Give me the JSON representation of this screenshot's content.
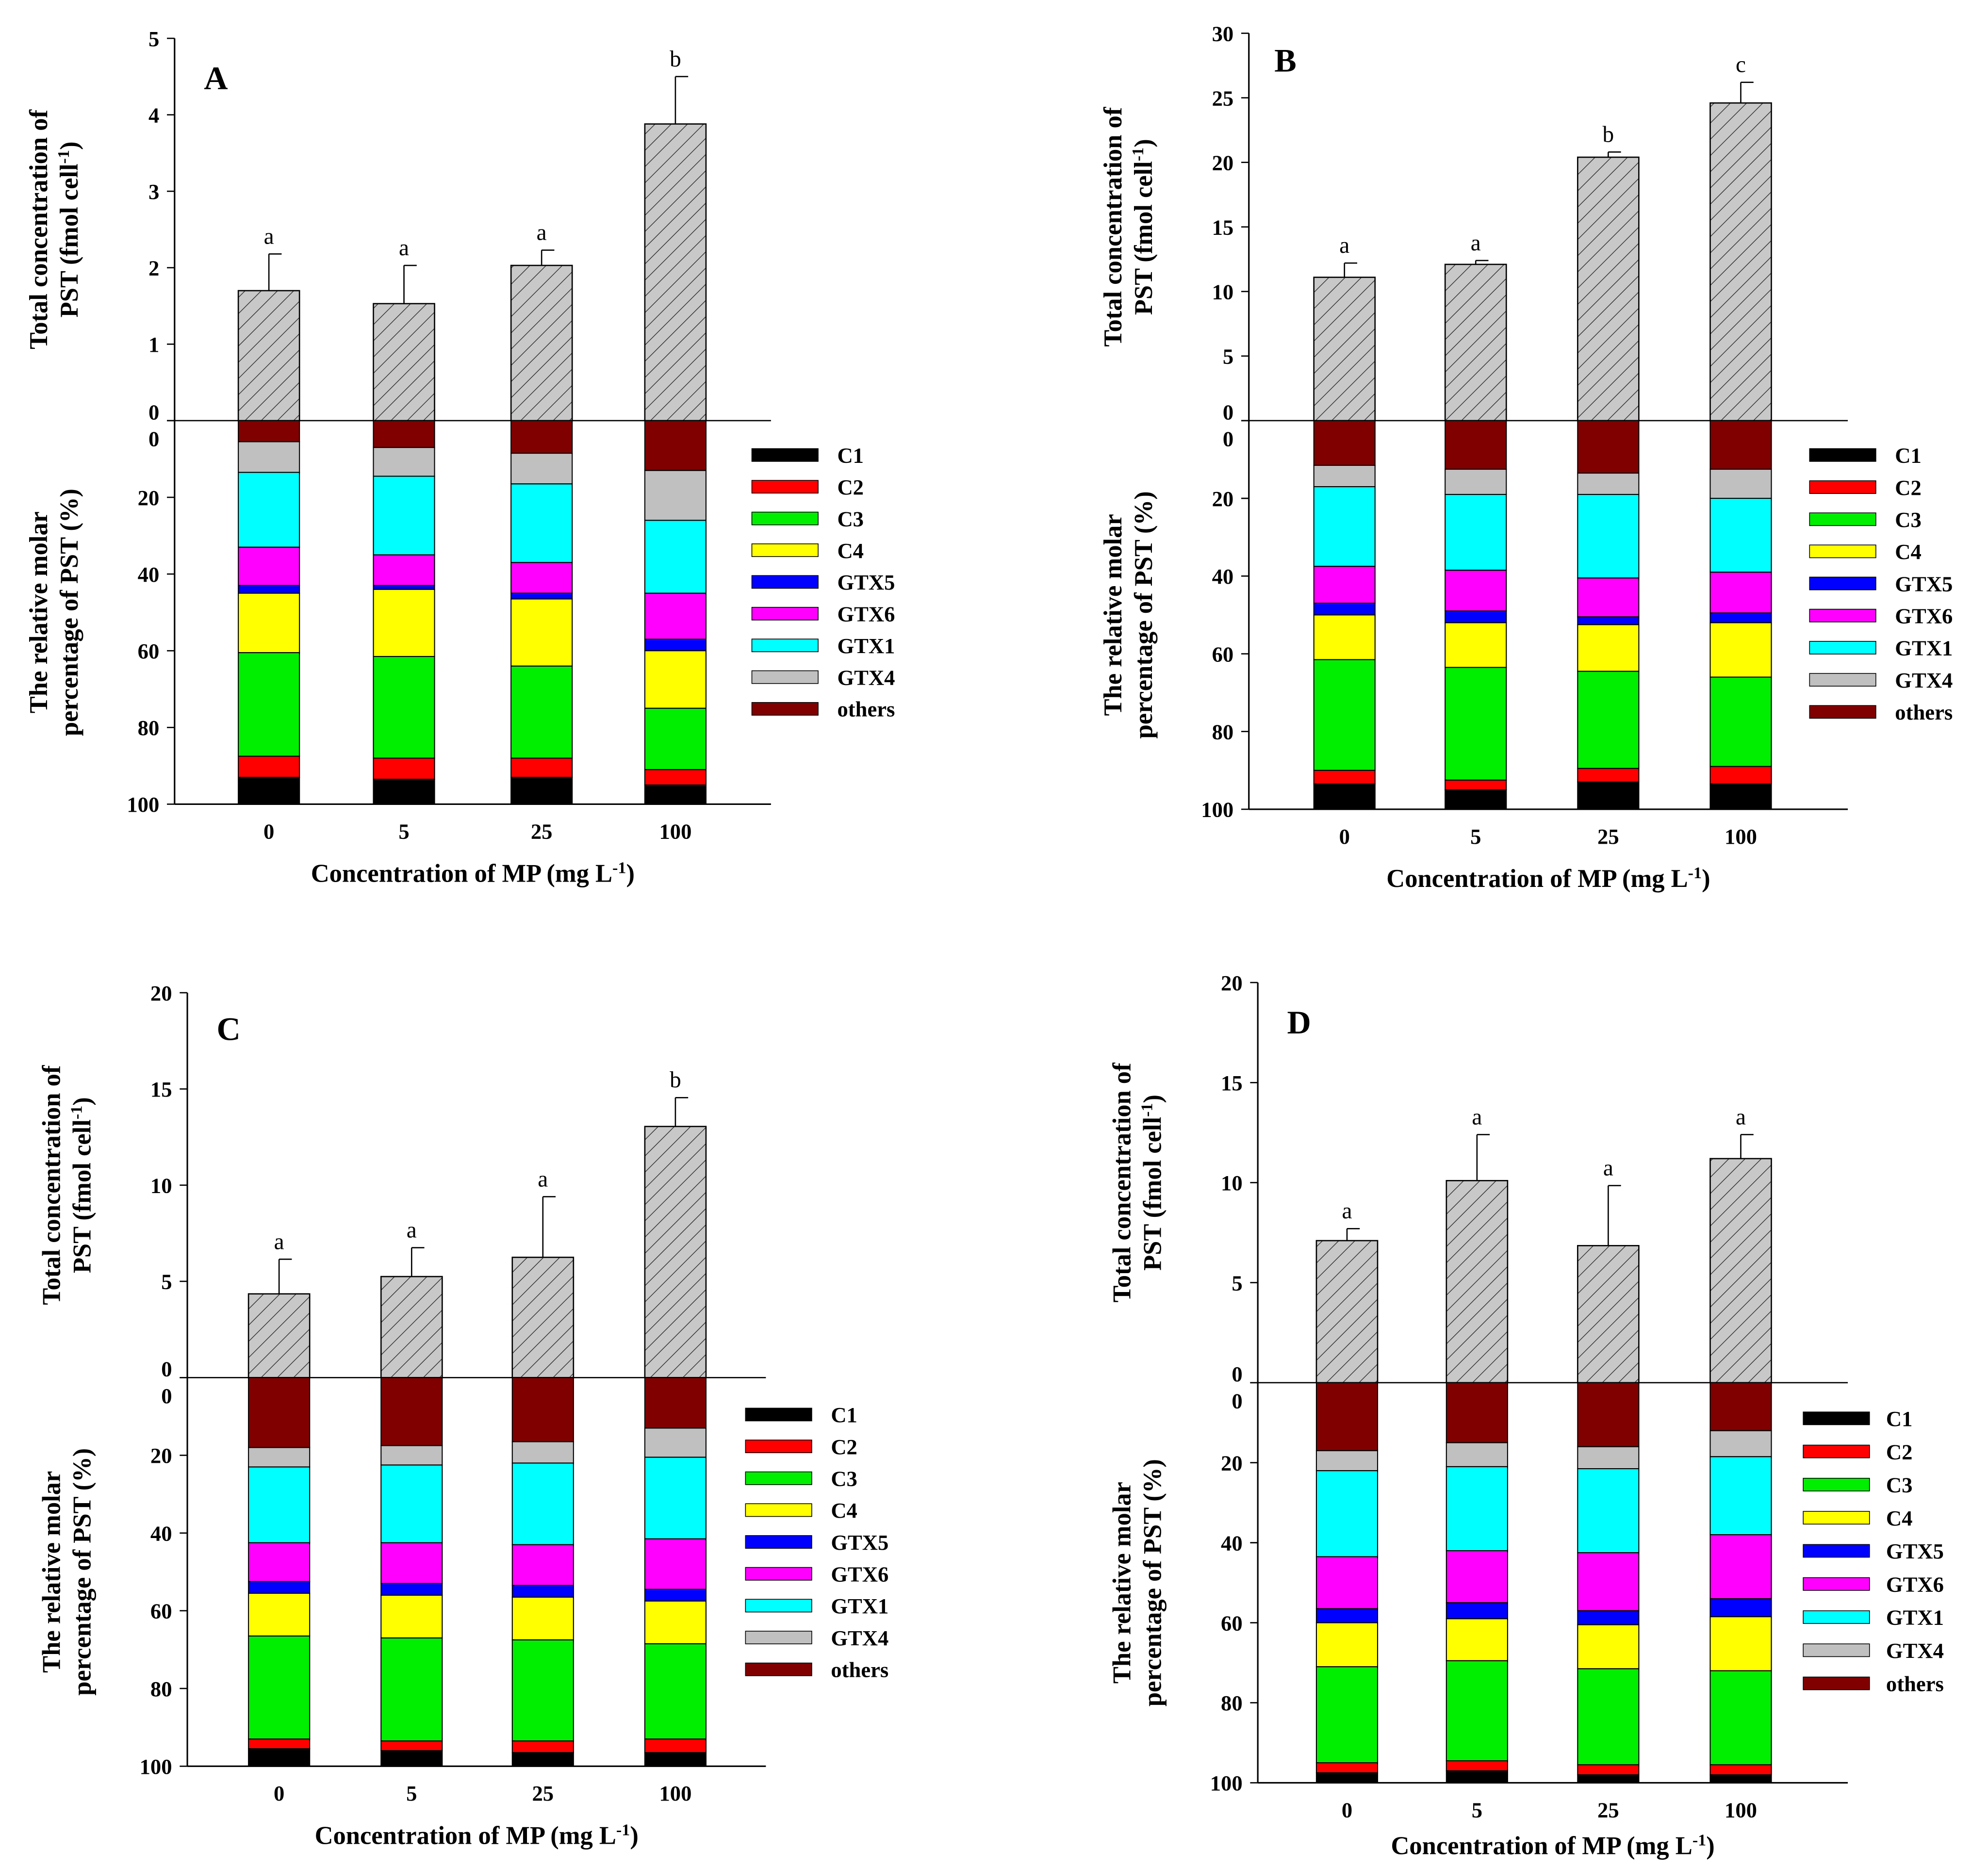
{
  "colors": {
    "C1": "#000000",
    "C2": "#ff0000",
    "C3": "#00ee00",
    "C4": "#ffff00",
    "GTX5": "#0000ff",
    "GTX6": "#ff00ff",
    "GTX1": "#00ffff",
    "GTX4": "#c0c0c0",
    "others": "#800000",
    "total_bar": "#c8c8c8"
  },
  "legend": [
    "C1",
    "C2",
    "C3",
    "C4",
    "GTX5",
    "GTX6",
    "GTX1",
    "GTX4",
    "others"
  ],
  "chart_data": [
    {
      "panel": "A",
      "type": "bar",
      "categories": [
        "0",
        "5",
        "25",
        "100"
      ],
      "xlabel": "Concentration of  MP (mg L-1)",
      "ylabel_top": [
        "Total concentration of",
        "PST (fmol cell-1)"
      ],
      "ylabel_bottom": [
        "The relative molar",
        "percentage  of PST (%)"
      ],
      "total": {
        "values": [
          1.7,
          1.53,
          2.03,
          3.88
        ],
        "errors": [
          0.48,
          0.5,
          0.2,
          0.62
        ],
        "letters": [
          "a",
          "a",
          "a",
          "b"
        ],
        "ylim": [
          0,
          5
        ],
        "ticks": [
          "0",
          "1",
          "2",
          "3",
          "4",
          "5"
        ]
      },
      "composition": {
        "ylim": [
          0,
          100
        ],
        "ticks": [
          "0",
          "20",
          "40",
          "60",
          "80",
          "100"
        ],
        "series": [
          {
            "name": "others",
            "values": [
              5.5,
              7,
              8.5,
              13
            ]
          },
          {
            "name": "GTX4",
            "values": [
              8,
              7.5,
              8,
              13
            ]
          },
          {
            "name": "GTX1",
            "values": [
              19.5,
              20.5,
              20.5,
              19
            ]
          },
          {
            "name": "GTX6",
            "values": [
              10,
              8,
              8,
              12
            ]
          },
          {
            "name": "GTX5",
            "values": [
              2,
              1,
              1.5,
              3
            ]
          },
          {
            "name": "C4",
            "values": [
              15.5,
              17.5,
              17.5,
              15
            ]
          },
          {
            "name": "C3",
            "values": [
              27,
              26.5,
              24,
              16
            ]
          },
          {
            "name": "C2",
            "values": [
              5.5,
              5.5,
              5,
              4
            ]
          },
          {
            "name": "C1",
            "values": [
              7,
              6.5,
              7,
              5
            ]
          }
        ]
      }
    },
    {
      "panel": "B",
      "type": "bar",
      "categories": [
        "0",
        "5",
        "25",
        "100"
      ],
      "xlabel": "Concentration of MP (mg L-1)",
      "ylabel_top": [
        "Total concentration of",
        "PST (fmol cell-1)"
      ],
      "ylabel_bottom": [
        "The relative molar",
        "percentage  of PST (%)"
      ],
      "total": {
        "values": [
          11.1,
          12.1,
          20.4,
          24.6
        ],
        "errors": [
          1.1,
          0.3,
          0.4,
          1.6
        ],
        "letters": [
          "a",
          "a",
          "b",
          "c"
        ],
        "ylim": [
          0,
          30
        ],
        "ticks": [
          "0",
          "5",
          "10",
          "15",
          "20",
          "25",
          "30"
        ]
      },
      "composition": {
        "ylim": [
          0,
          100
        ],
        "ticks": [
          "0",
          "20",
          "40",
          "60",
          "80",
          "100"
        ],
        "series": [
          {
            "name": "others",
            "values": [
              11.5,
              12.5,
              13.5,
              12.5
            ]
          },
          {
            "name": "GTX4",
            "values": [
              5.5,
              6.5,
              5.5,
              7.5
            ]
          },
          {
            "name": "GTX1",
            "values": [
              20.5,
              19.5,
              21.5,
              19
            ]
          },
          {
            "name": "GTX6",
            "values": [
              9.5,
              10.5,
              10,
              10.5
            ]
          },
          {
            "name": "GTX5",
            "values": [
              3,
              3,
              2,
              2.5
            ]
          },
          {
            "name": "C4",
            "values": [
              11.5,
              11.5,
              12,
              14
            ]
          },
          {
            "name": "C3",
            "values": [
              28.5,
              29,
              25,
              23
            ]
          },
          {
            "name": "C2",
            "values": [
              3.5,
              2.5,
              3.5,
              4.5
            ]
          },
          {
            "name": "C1",
            "values": [
              6.5,
              5,
              7,
              6.5
            ]
          }
        ]
      }
    },
    {
      "panel": "C",
      "type": "bar",
      "categories": [
        "0",
        "5",
        "25",
        "100"
      ],
      "xlabel": "Concentration of MP (mg L-1)",
      "ylabel_top": [
        "Total concentration of",
        "PST (fmol cell-1)"
      ],
      "ylabel_bottom": [
        "The relative molar",
        "percentage  of PST (%)"
      ],
      "total": {
        "values": [
          4.35,
          5.25,
          6.25,
          13.05
        ],
        "errors": [
          1.8,
          1.5,
          3.15,
          1.5
        ],
        "letters": [
          "a",
          "a",
          "a",
          "b"
        ],
        "ylim": [
          0,
          20
        ],
        "ticks": [
          "0",
          "5",
          "10",
          "15",
          "20"
        ]
      },
      "composition": {
        "ylim": [
          0,
          100
        ],
        "ticks": [
          "0",
          "20",
          "40",
          "60",
          "80",
          "100"
        ],
        "series": [
          {
            "name": "others",
            "values": [
              18,
              17.5,
              16.5,
              13
            ]
          },
          {
            "name": "GTX4",
            "values": [
              5,
              5,
              5.5,
              7.5
            ]
          },
          {
            "name": "GTX1",
            "values": [
              19.5,
              20,
              21,
              21
            ]
          },
          {
            "name": "GTX6",
            "values": [
              10,
              10.5,
              10.5,
              13
            ]
          },
          {
            "name": "GTX5",
            "values": [
              3,
              3,
              3,
              3
            ]
          },
          {
            "name": "C4",
            "values": [
              11,
              11,
              11,
              11
            ]
          },
          {
            "name": "C3",
            "values": [
              26.5,
              26.5,
              26,
              24.5
            ]
          },
          {
            "name": "C2",
            "values": [
              2.5,
              2.5,
              3,
              3.5
            ]
          },
          {
            "name": "C1",
            "values": [
              4.5,
              4,
              3.5,
              3.5
            ]
          }
        ]
      }
    },
    {
      "panel": "D",
      "type": "bar",
      "categories": [
        "0",
        "5",
        "25",
        "100"
      ],
      "xlabel": "Concentration of MP (mg L-1)",
      "ylabel_top": [
        "Total concentration of",
        "PST (fmol cell-1)"
      ],
      "ylabel_bottom": [
        "The relative molar",
        "percentage  of PST (%)"
      ],
      "total": {
        "values": [
          7.1,
          10.1,
          6.85,
          11.2
        ],
        "errors": [
          0.6,
          2.3,
          3.0,
          1.2
        ],
        "letters": [
          "a",
          "a",
          "a",
          "a"
        ],
        "ylim": [
          0,
          20
        ],
        "ticks": [
          "0",
          "5",
          "10",
          "15",
          "20"
        ]
      },
      "composition": {
        "ylim": [
          0,
          100
        ],
        "ticks": [
          "0",
          "20",
          "40",
          "60",
          "80",
          "100"
        ],
        "series": [
          {
            "name": "others",
            "values": [
              17,
              15,
              16,
              12
            ]
          },
          {
            "name": "GTX4",
            "values": [
              5,
              6,
              5.5,
              6.5
            ]
          },
          {
            "name": "GTX1",
            "values": [
              21.5,
              21,
              21,
              19.5
            ]
          },
          {
            "name": "GTX6",
            "values": [
              13,
              13,
              14.5,
              16
            ]
          },
          {
            "name": "GTX5",
            "values": [
              3.5,
              4,
              3.5,
              4.5
            ]
          },
          {
            "name": "C4",
            "values": [
              11,
              10.5,
              11,
              13.5
            ]
          },
          {
            "name": "C3",
            "values": [
              24,
              25,
              24,
              23.5
            ]
          },
          {
            "name": "C2",
            "values": [
              2.5,
              2.5,
              2.5,
              2.5
            ]
          },
          {
            "name": "C1",
            "values": [
              2.5,
              3,
              2,
              2
            ]
          }
        ]
      }
    }
  ]
}
